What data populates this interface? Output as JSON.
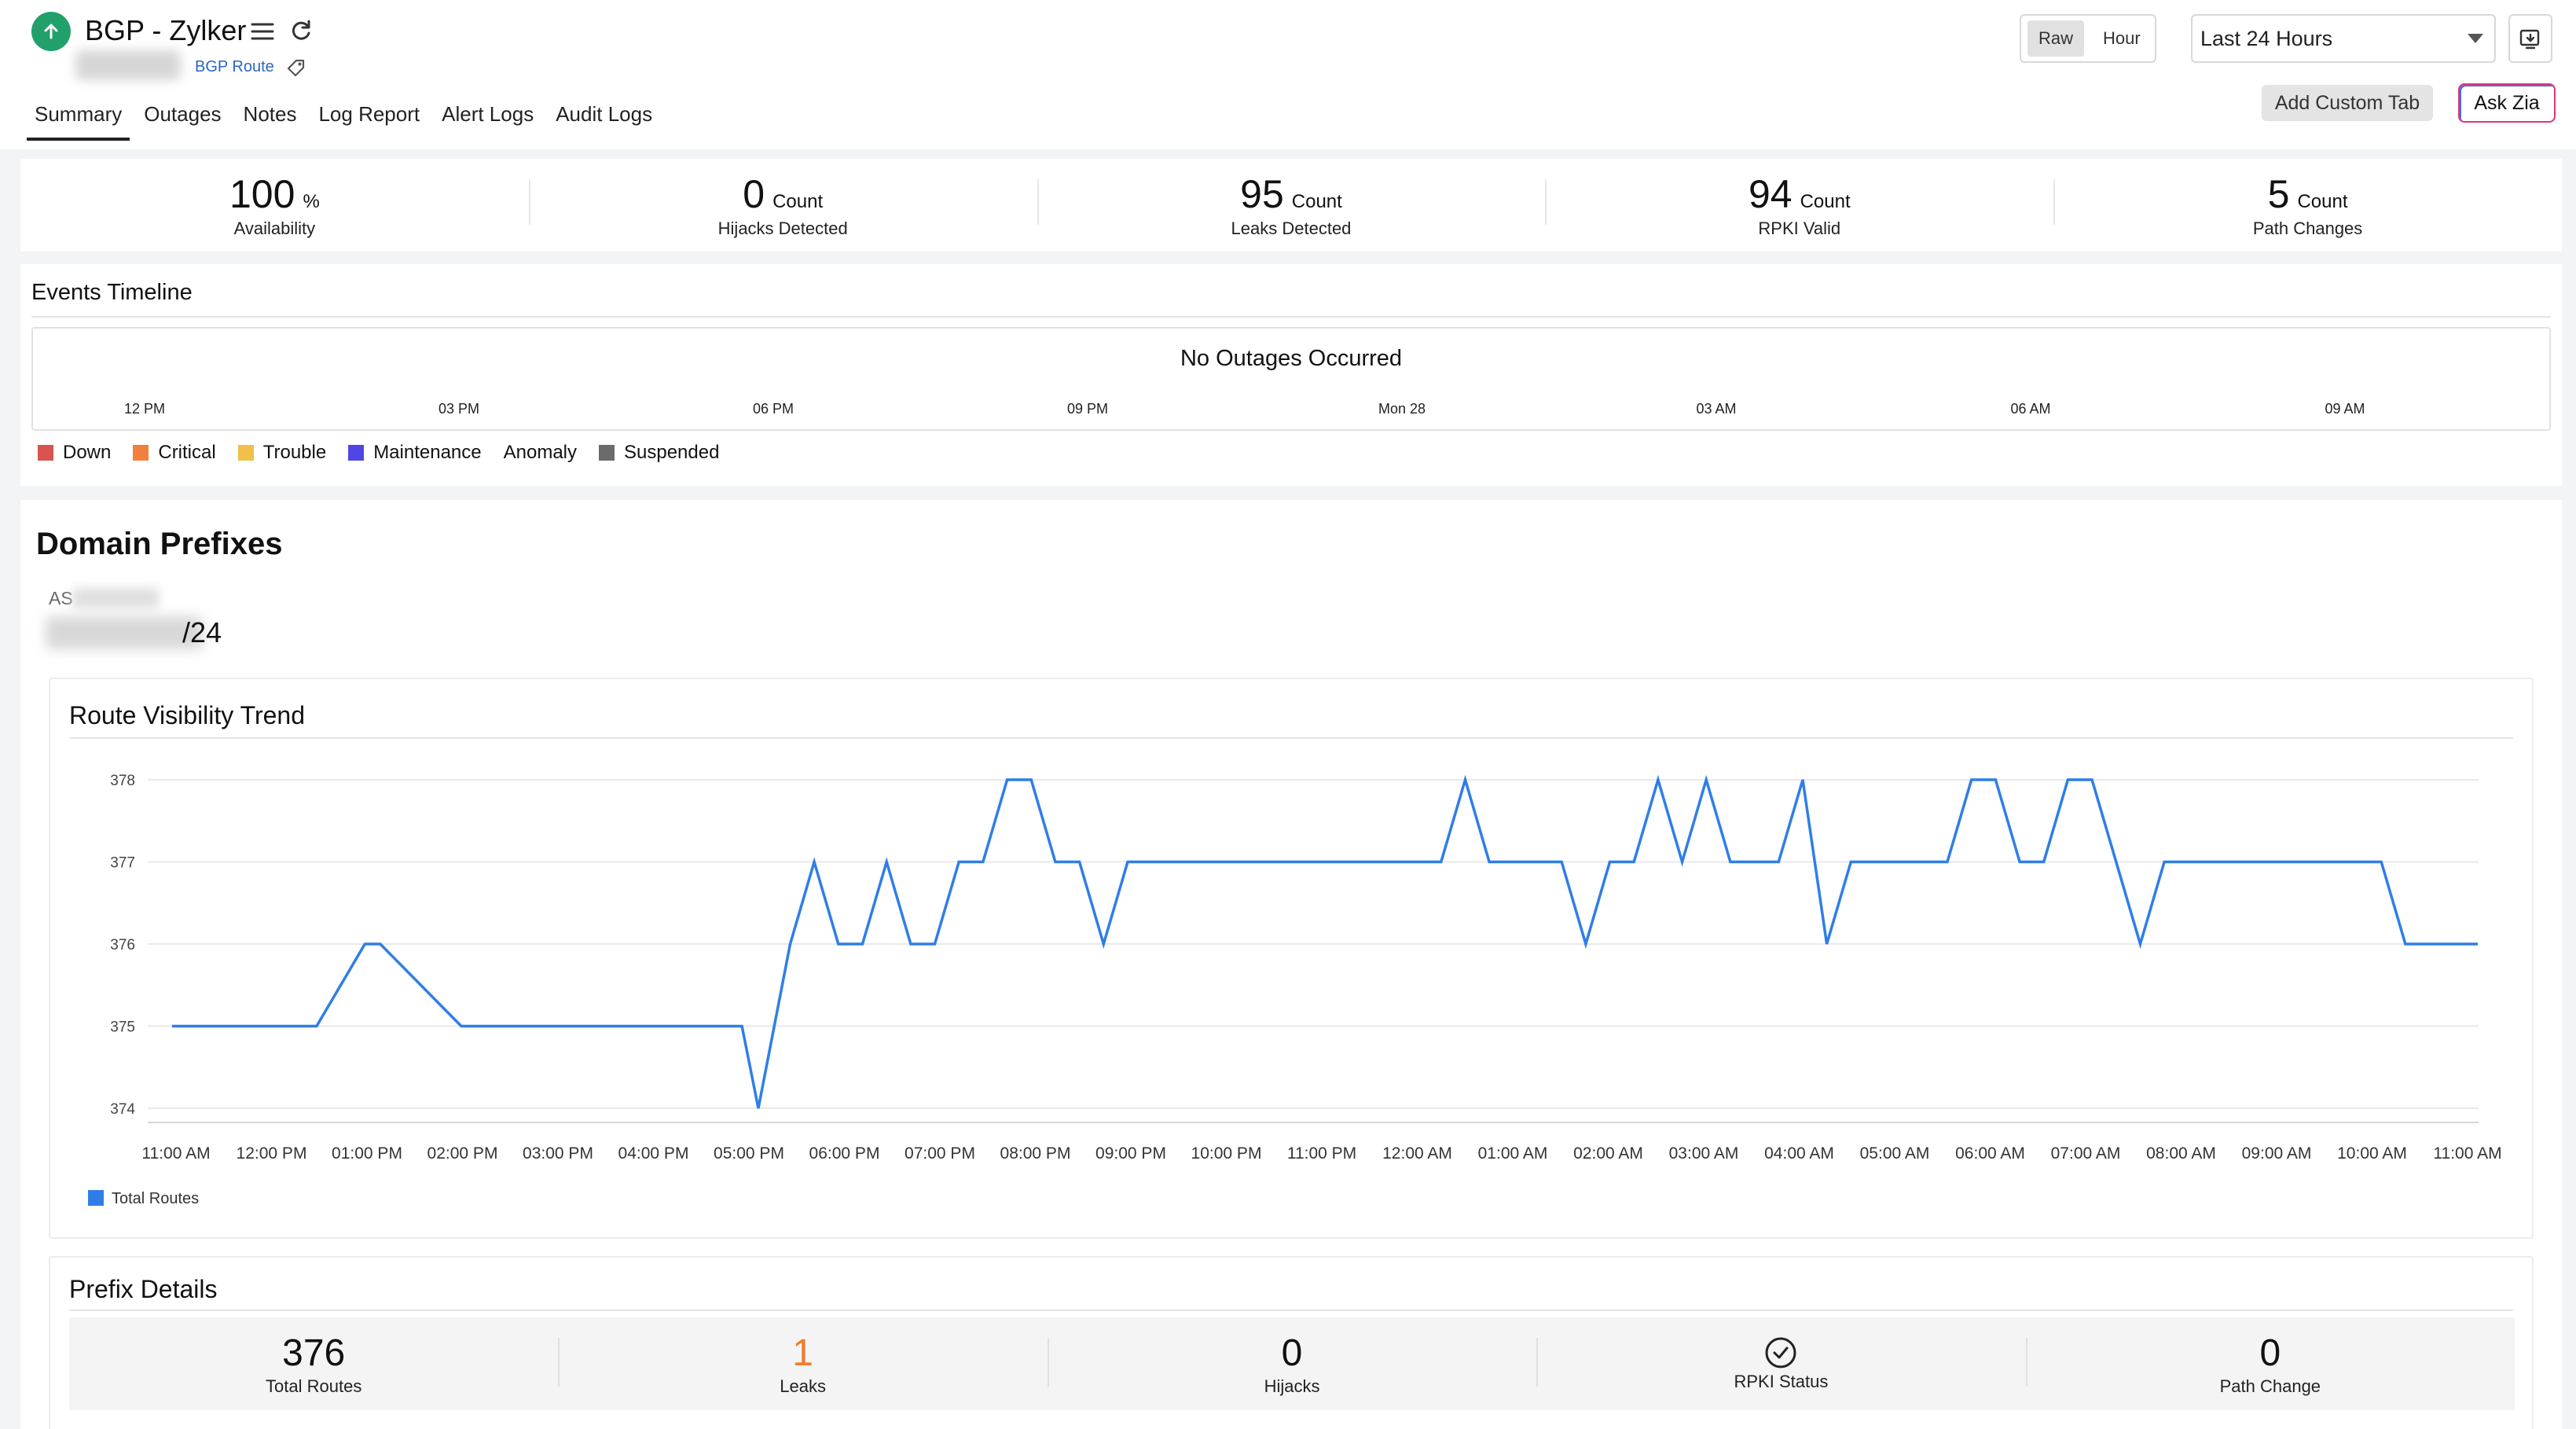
{
  "header": {
    "title": "BGP - Zylker",
    "type_label": "BGP Route",
    "tabs": [
      "Summary",
      "Outages",
      "Notes",
      "Log Report",
      "Alert Logs",
      "Audit Logs"
    ],
    "active_tab": "Summary",
    "view_toggle": [
      "Raw",
      "Hour"
    ],
    "active_view": "Raw",
    "time_range": "Last 24 Hours",
    "add_custom_tab": "Add Custom Tab",
    "ask_zia": "Ask Zia",
    "status": "up",
    "status_color": "#22a06b"
  },
  "metrics": [
    {
      "value": "100",
      "unit": "%",
      "label": "Availability"
    },
    {
      "value": "0",
      "unit": "Count",
      "label": "Hijacks Detected"
    },
    {
      "value": "95",
      "unit": "Count",
      "label": "Leaks Detected"
    },
    {
      "value": "94",
      "unit": "Count",
      "label": "RPKI Valid"
    },
    {
      "value": "5",
      "unit": "Count",
      "label": "Path Changes"
    }
  ],
  "events_timeline": {
    "title": "Events Timeline",
    "message": "No Outages Occurred",
    "ticks": [
      "12 PM",
      "03 PM",
      "06 PM",
      "09 PM",
      "Mon 28",
      "03 AM",
      "06 AM",
      "09 AM"
    ],
    "legend": [
      {
        "label": "Down",
        "color": "#d9534f"
      },
      {
        "label": "Critical",
        "color": "#f0803c"
      },
      {
        "label": "Trouble",
        "color": "#f2c04a"
      },
      {
        "label": "Maintenance",
        "color": "#5046e5"
      },
      {
        "label": "Anomaly",
        "color": ""
      },
      {
        "label": "Suspended",
        "color": "#6b6b6b"
      }
    ]
  },
  "domain_prefixes": {
    "title": "Domain Prefixes",
    "as_label": "AS",
    "prefix_suffix": "/24"
  },
  "trend": {
    "title": "Route Visibility Trend"
  },
  "chart_data": {
    "type": "line",
    "title": "Route Visibility Trend",
    "xlabel": "",
    "ylabel": "",
    "ylim": [
      374,
      378
    ],
    "y_ticks": [
      "378",
      "377",
      "376",
      "375",
      "374"
    ],
    "x_ticks": [
      "11:00 AM",
      "12:00 PM",
      "01:00 PM",
      "02:00 PM",
      "03:00 PM",
      "04:00 PM",
      "05:00 PM",
      "06:00 PM",
      "07:00 PM",
      "08:00 PM",
      "09:00 PM",
      "10:00 PM",
      "11:00 PM",
      "12:00 AM",
      "01:00 AM",
      "02:00 AM",
      "03:00 AM",
      "04:00 AM",
      "05:00 AM",
      "06:00 AM",
      "07:00 AM",
      "08:00 AM",
      "09:00 AM",
      "10:00 AM",
      "11:00 AM"
    ],
    "grid": true,
    "legend_position": "bottom-left",
    "series": [
      {
        "name": "Total Routes",
        "color": "#2f7ee8",
        "x": [
          0.17,
          1.42,
          1.67,
          2.17,
          2.33,
          3.17,
          3.42,
          4.17,
          5.17,
          5.33,
          5.58,
          5.83,
          6.08,
          6.25,
          6.58,
          6.83,
          7.08,
          7.33,
          7.58,
          7.83,
          8.08,
          8.33,
          8.58,
          8.83,
          9.08,
          9.33,
          9.58,
          9.83,
          10.08,
          10.58,
          10.83,
          11.08,
          11.33,
          11.58,
          11.83,
          12.08,
          12.33,
          12.58,
          12.83,
          13.08,
          13.33,
          13.58,
          13.83,
          14.08,
          14.33,
          14.58,
          14.83,
          15.08,
          15.33,
          15.58,
          15.83,
          16.08,
          16.33,
          16.58,
          16.83,
          17.08,
          17.33,
          17.58,
          17.83,
          18.08,
          18.33,
          18.58,
          18.83,
          19.08,
          19.33,
          19.58,
          19.83,
          20.08,
          20.33,
          20.58,
          20.83,
          21.08,
          21.33,
          21.58,
          21.83,
          22.08,
          22.33,
          22.58,
          22.83,
          23.08,
          23.33,
          23.58,
          23.83,
          24.08
        ],
        "values": [
          375,
          375,
          375,
          376,
          376,
          375,
          375,
          375,
          375,
          375,
          375,
          375,
          375,
          374,
          376,
          377,
          376,
          376,
          377,
          376,
          376,
          377,
          377,
          378,
          378,
          377,
          377,
          376,
          377,
          377,
          377,
          377,
          377,
          377,
          377,
          377,
          377,
          377,
          377,
          377,
          377,
          378,
          377,
          377,
          377,
          377,
          376,
          377,
          377,
          378,
          377,
          378,
          377,
          377,
          377,
          378,
          376,
          377,
          377,
          377,
          377,
          377,
          378,
          378,
          377,
          377,
          378,
          378,
          377,
          376,
          377,
          377,
          377,
          377,
          377,
          377,
          377,
          377,
          377,
          377,
          376,
          376,
          376,
          376
        ]
      }
    ]
  },
  "prefix_details": {
    "title": "Prefix Details",
    "items": [
      {
        "value": "376",
        "label": "Total Routes"
      },
      {
        "value": "1",
        "label": "Leaks"
      },
      {
        "value": "0",
        "label": "Hijacks"
      },
      {
        "value": "",
        "label": "RPKI Status"
      },
      {
        "value": "0",
        "label": "Path Change"
      }
    ],
    "leaks_color": "#f07c2b"
  }
}
